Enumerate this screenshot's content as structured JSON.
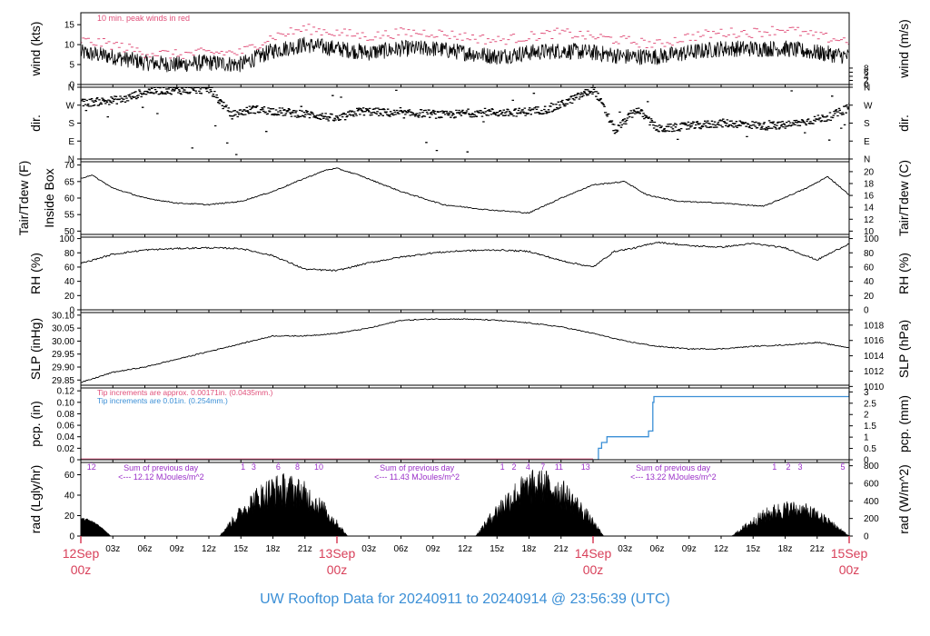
{
  "title": "UW Rooftop Data for 20240911  to  20240914 @ 23:56:39  (UTC)",
  "colors": {
    "title": "#3b8fd6",
    "peak": "#e0507a",
    "tip_heated": "#e0507a",
    "tip_unheated": "#3b8fd6",
    "radiation_notes": "#9a30c8",
    "date_labels": "#d8405a",
    "axis": "#000000"
  },
  "time_axis": {
    "major_labels": [
      {
        "h": 0,
        "top": "12Sep",
        "bottom": "00z"
      },
      {
        "h": 24,
        "top": "13Sep",
        "bottom": "00z"
      },
      {
        "h": 48,
        "top": "14Sep",
        "bottom": "00z"
      },
      {
        "h": 72,
        "top": "15Sep",
        "bottom": "00z"
      }
    ],
    "minor_labels": [
      {
        "h": 3,
        "t": "03z"
      },
      {
        "h": 6,
        "t": "06z"
      },
      {
        "h": 9,
        "t": "09z"
      },
      {
        "h": 12,
        "t": "12z"
      },
      {
        "h": 15,
        "t": "15z"
      },
      {
        "h": 18,
        "t": "18z"
      },
      {
        "h": 21,
        "t": "21z"
      },
      {
        "h": 27,
        "t": "03z"
      },
      {
        "h": 30,
        "t": "06z"
      },
      {
        "h": 33,
        "t": "09z"
      },
      {
        "h": 36,
        "t": "12z"
      },
      {
        "h": 39,
        "t": "15z"
      },
      {
        "h": 42,
        "t": "18z"
      },
      {
        "h": 45,
        "t": "21z"
      },
      {
        "h": 51,
        "t": "03z"
      },
      {
        "h": 54,
        "t": "06z"
      },
      {
        "h": 57,
        "t": "09z"
      },
      {
        "h": 60,
        "t": "12z"
      },
      {
        "h": 63,
        "t": "15z"
      },
      {
        "h": 66,
        "t": "18z"
      },
      {
        "h": 69,
        "t": "21z"
      }
    ]
  },
  "chart_data": [
    {
      "type": "line",
      "id": "wind",
      "ylabel": "wind (kts)",
      "ylabel_right": "wind (m/s)",
      "left_ticks": [
        0,
        5,
        10,
        15
      ],
      "right_ticks": [
        0,
        2,
        4,
        6,
        8
      ],
      "right_factor": 1.944,
      "ylim": [
        0,
        18
      ],
      "annotation": "10 min. peak winds in red",
      "series": [
        {
          "kind": "mean",
          "x": [
            0,
            3,
            6,
            9,
            12,
            15,
            18,
            21,
            24,
            27,
            30,
            33,
            36,
            39,
            42,
            45,
            48,
            51,
            54,
            57,
            60,
            63,
            66,
            69,
            72
          ],
          "y": [
            8,
            7,
            5.5,
            5,
            5.5,
            5,
            8.5,
            10,
            9,
            8,
            9,
            9,
            8,
            7,
            8,
            8.5,
            8,
            7,
            7,
            8,
            9,
            9,
            9,
            8,
            7
          ]
        },
        {
          "kind": "peak",
          "x": [
            0,
            3,
            6,
            9,
            12,
            15,
            18,
            21,
            24,
            27,
            30,
            33,
            36,
            39,
            42,
            45,
            48,
            51,
            54,
            57,
            60,
            63,
            66,
            69,
            72
          ],
          "y": [
            11,
            10,
            8,
            7.5,
            8,
            8,
            12,
            14,
            13,
            12,
            13,
            13,
            12,
            11,
            12,
            13,
            12,
            11,
            10,
            12,
            13,
            13,
            14,
            12,
            11
          ]
        }
      ]
    },
    {
      "type": "scatter",
      "id": "dir",
      "ylabel": "dir.",
      "ylabel_right": "dir.",
      "tick_labels": [
        "N",
        "E",
        "S",
        "W",
        "N"
      ],
      "ylim": [
        0,
        360
      ],
      "series": [
        {
          "x": [
            0,
            2,
            4,
            6,
            8,
            10,
            12,
            14,
            16,
            18,
            20,
            22,
            24,
            26,
            28,
            30,
            32,
            34,
            36,
            38,
            40,
            42,
            44,
            46,
            48,
            50,
            52,
            54,
            56,
            58,
            60,
            62,
            64,
            66,
            68,
            70,
            72
          ],
          "y": [
            280,
            290,
            300,
            340,
            345,
            345,
            350,
            220,
            250,
            240,
            230,
            220,
            200,
            240,
            235,
            225,
            230,
            220,
            230,
            235,
            230,
            240,
            250,
            300,
            350,
            140,
            250,
            150,
            160,
            170,
            180,
            175,
            165,
            170,
            190,
            210,
            260
          ]
        }
      ]
    },
    {
      "type": "line",
      "id": "temp",
      "ylabel": "Tair/Tdew (F)",
      "ylabel2": "Inside Box",
      "ylabel_right": "Tair/Tdew (C)",
      "left_ticks": [
        50,
        55,
        60,
        65,
        70
      ],
      "right_ticks": [
        10,
        12,
        14,
        16,
        18,
        20
      ],
      "ylim": [
        49,
        71
      ],
      "series": [
        {
          "x": [
            0,
            1,
            3,
            6,
            9,
            12,
            15,
            18,
            21,
            23,
            24,
            26,
            30,
            34,
            38,
            42,
            45,
            48,
            51,
            53,
            56,
            60,
            64,
            68,
            70,
            72
          ],
          "y": [
            66,
            67,
            63,
            60,
            58.5,
            58,
            59,
            62,
            66,
            68.5,
            69,
            67,
            62,
            58,
            56.5,
            55.5,
            60,
            64,
            65,
            61,
            59,
            58.5,
            57.5,
            63,
            66.5,
            61
          ]
        }
      ]
    },
    {
      "type": "line",
      "id": "rh",
      "ylabel": "RH (%)",
      "ylabel_right": "RH (%)",
      "left_ticks": [
        0,
        20,
        40,
        60,
        80,
        100
      ],
      "right_ticks": [
        0,
        20,
        40,
        60,
        80,
        100
      ],
      "ylim": [
        0,
        102
      ],
      "series": [
        {
          "x": [
            0,
            3,
            6,
            9,
            12,
            15,
            18,
            21,
            24,
            27,
            30,
            33,
            36,
            39,
            42,
            45,
            48,
            50,
            52,
            54,
            57,
            60,
            63,
            66,
            69,
            72
          ],
          "y": [
            65,
            78,
            84,
            86,
            87,
            86,
            76,
            57,
            55,
            66,
            74,
            80,
            83,
            84,
            82,
            69,
            60,
            82,
            87,
            95,
            90,
            88,
            93,
            87,
            70,
            93
          ]
        }
      ]
    },
    {
      "type": "line",
      "id": "slp",
      "ylabel": "SLP (inHg)",
      "ylabel_right": "SLP (hPa)",
      "left_ticks": [
        29.85,
        29.9,
        29.95,
        30,
        30.05,
        30.1
      ],
      "left_tick_labels": [
        "29.85",
        "29.90",
        "29.95",
        "30.00",
        "30.05",
        "30.10"
      ],
      "right_ticks": [
        1010,
        1012,
        1014,
        1016,
        1018
      ],
      "right_factor": 33.8639,
      "ylim": [
        29.83,
        30.11
      ],
      "series": [
        {
          "x": [
            0,
            3,
            6,
            9,
            12,
            15,
            18,
            21,
            24,
            27,
            30,
            33,
            36,
            39,
            42,
            45,
            48,
            51,
            54,
            57,
            60,
            63,
            66,
            69,
            72
          ],
          "y": [
            29.84,
            29.88,
            29.9,
            29.93,
            29.96,
            29.99,
            30.02,
            30.02,
            30.03,
            30.05,
            30.08,
            30.085,
            30.085,
            30.08,
            30.07,
            30.055,
            30.03,
            30.0,
            29.98,
            29.97,
            29.97,
            29.98,
            29.985,
            29.995,
            29.975
          ]
        }
      ]
    },
    {
      "type": "line",
      "id": "pcp",
      "ylabel": "pcp. (in)",
      "ylabel_right": "pcp. (mm)",
      "left_ticks": [
        0,
        0.02,
        0.04,
        0.06,
        0.08,
        0.1,
        0.12
      ],
      "left_tick_labels": [
        "0",
        "0.02",
        "0.04",
        "0.06",
        "0.08",
        "0.10",
        "0.12"
      ],
      "right_ticks": [
        0,
        0.5,
        1,
        1.5,
        2,
        2.5,
        3
      ],
      "right_tick_labels": [
        "0",
        "0.5",
        "1",
        "1.5",
        "2",
        "2.5",
        "3"
      ],
      "right_factor": 25.4,
      "ylim": [
        0,
        0.125
      ],
      "notes": [
        "Tip increments are approx. 0.00171in. (0.0435mm.)",
        "Tip increments are 0.01in. (0.254mm.)"
      ],
      "series": [
        {
          "kind": "step",
          "x": [
            0,
            48,
            48.5,
            48.8,
            49.3,
            53,
            53.2,
            53.6,
            53.7,
            71.8,
            72
          ],
          "y": [
            0,
            0,
            0.02,
            0.03,
            0.04,
            0.04,
            0.05,
            0.1,
            0.11,
            0.11,
            0.12
          ]
        }
      ]
    },
    {
      "type": "area",
      "id": "rad",
      "ylabel": "rad (Lgly/hr)",
      "ylabel_right": "rad (W/m^2)",
      "left_ticks": [
        0,
        20,
        40,
        60
      ],
      "right_ticks": [
        0,
        200,
        400,
        600,
        800
      ],
      "right_factor": 11.63,
      "ylim": [
        0,
        72
      ],
      "day_curves": [
        {
          "start": 0,
          "end": 2.8,
          "peak": 18
        },
        {
          "start": 13,
          "end": 25,
          "peak": 62
        },
        {
          "start": 37,
          "end": 49,
          "peak": 66
        },
        {
          "start": 61,
          "end": 72,
          "peak": 35
        }
      ],
      "markers": [
        {
          "h": 1,
          "t": "12"
        },
        {
          "h": 15.2,
          "t": "1"
        },
        {
          "h": 16.2,
          "t": "3"
        },
        {
          "h": 18.5,
          "t": "6"
        },
        {
          "h": 20.3,
          "t": "8"
        },
        {
          "h": 22.3,
          "t": "10"
        },
        {
          "h": 39.5,
          "t": "1"
        },
        {
          "h": 40.6,
          "t": "2"
        },
        {
          "h": 41.9,
          "t": "4"
        },
        {
          "h": 43.3,
          "t": "7"
        },
        {
          "h": 44.8,
          "t": "11"
        },
        {
          "h": 47.3,
          "t": "13"
        },
        {
          "h": 65,
          "t": "1"
        },
        {
          "h": 66.3,
          "t": "2"
        },
        {
          "h": 67.4,
          "t": "3"
        },
        {
          "h": 71.4,
          "t": "5"
        }
      ],
      "sum_notes": [
        {
          "h": 3.5,
          "line1": "Sum of previous day",
          "line2": "<--- 12.12 MJoules/m^2"
        },
        {
          "h": 27.5,
          "line1": "Sum of previous day",
          "line2": "<--- 11.43 MJoules/m^2"
        },
        {
          "h": 51.5,
          "line1": "Sum of previous day",
          "line2": "<--- 13.22 MJoules/m^2"
        }
      ]
    }
  ]
}
